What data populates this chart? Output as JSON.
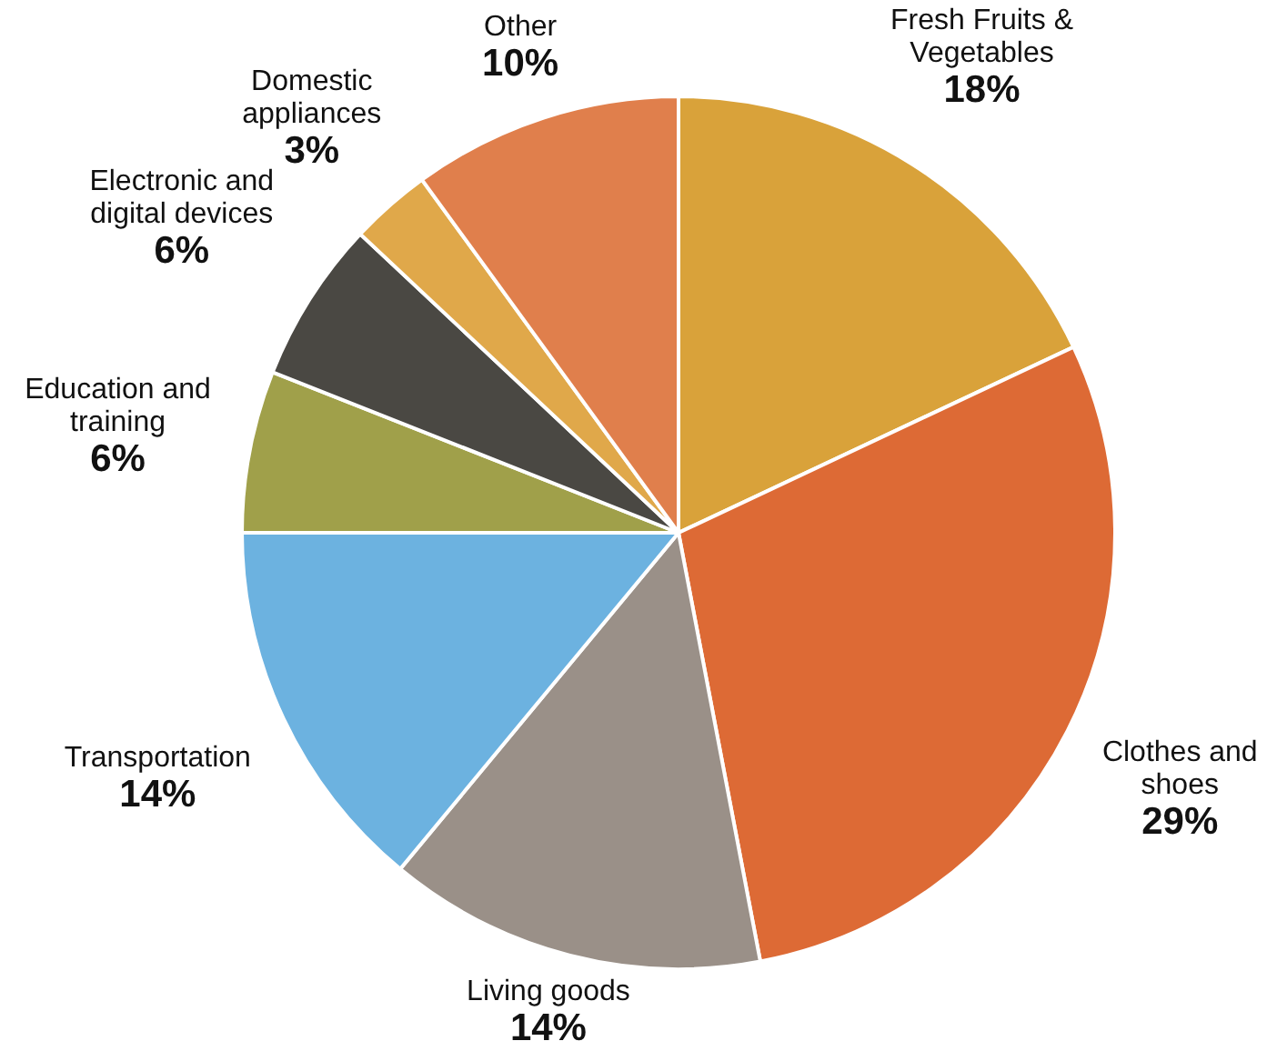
{
  "chart_data": {
    "type": "pie",
    "categories": [
      "Fresh Fruits & Vegetables",
      "Clothes and shoes",
      "Living goods",
      "Transportation",
      "Education and training",
      "Electronic and digital devices",
      "Domestic appliances",
      "Other"
    ],
    "values": [
      18,
      29,
      14,
      14,
      6,
      6,
      3,
      10
    ],
    "value_labels": [
      "18%",
      "29%",
      "14%",
      "14%",
      "6%",
      "6%",
      "3%",
      "10%"
    ],
    "colors": [
      "#d9a23a",
      "#dd6a35",
      "#9a9088",
      "#6cb2e0",
      "#a0a04a",
      "#4a4843",
      "#e0a84a",
      "#e07f4c"
    ]
  }
}
